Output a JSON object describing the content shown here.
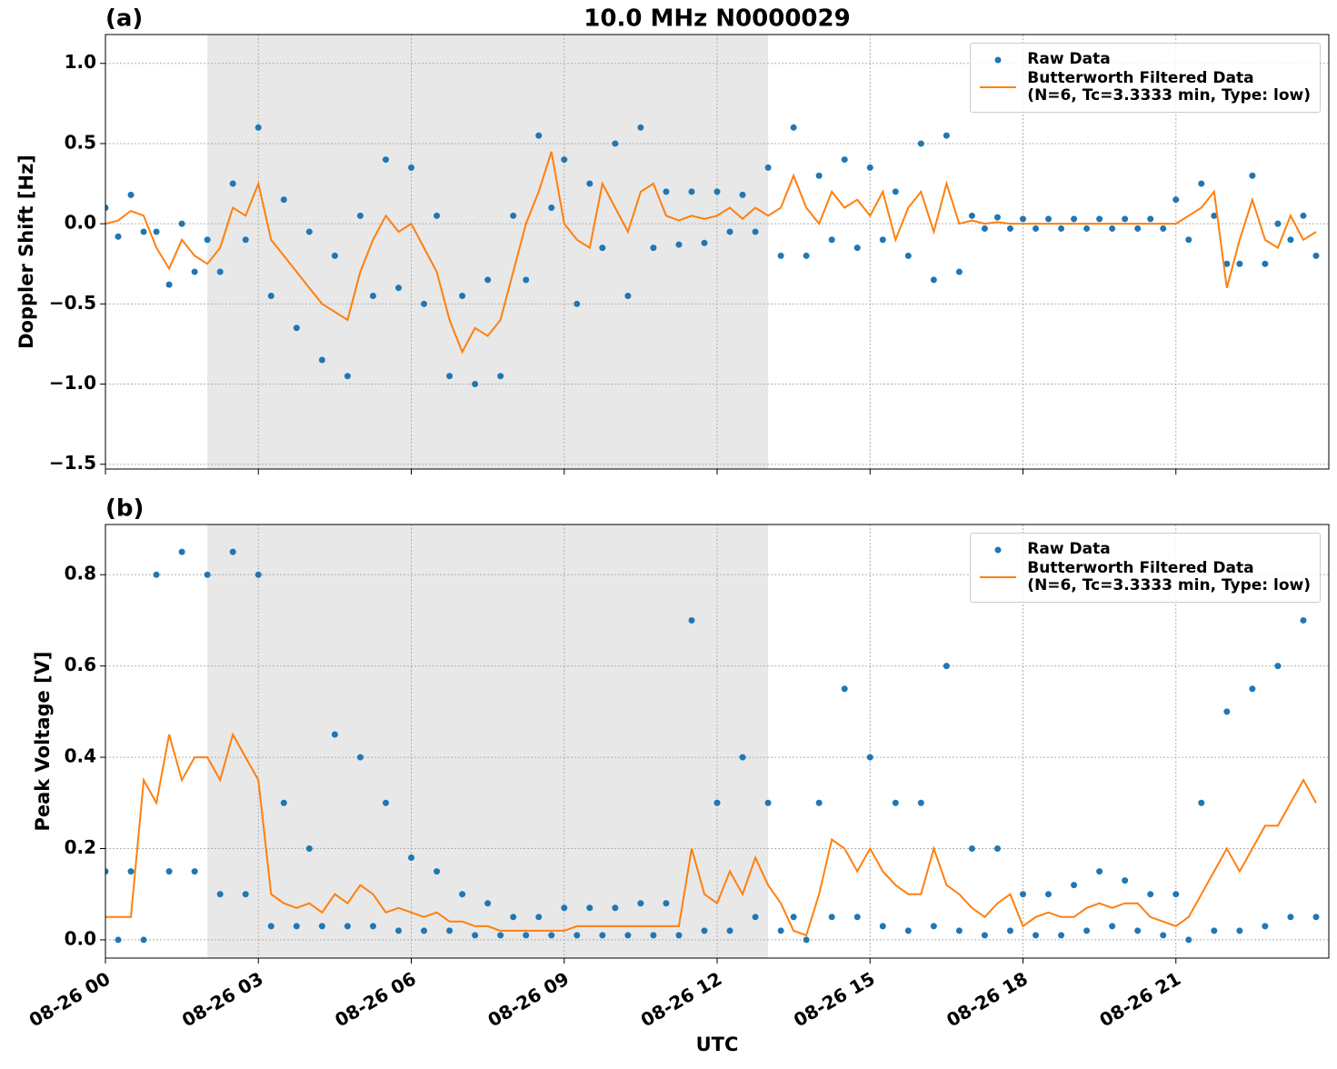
{
  "chart_data": [
    {
      "type": "line",
      "title": "10.0 MHz N0000029",
      "panel_label": "(a)",
      "y_label": "Doppler Shift [Hz]",
      "x": [
        0,
        0.25,
        0.5,
        0.75,
        1,
        1.25,
        1.5,
        1.75,
        2,
        2.25,
        2.5,
        2.75,
        3,
        3.25,
        3.5,
        3.75,
        4,
        4.25,
        4.5,
        4.75,
        5,
        5.25,
        5.5,
        5.75,
        6,
        6.25,
        6.5,
        6.75,
        7,
        7.25,
        7.5,
        7.75,
        8,
        8.25,
        8.5,
        8.75,
        9,
        9.25,
        9.5,
        9.75,
        10,
        10.25,
        10.5,
        10.75,
        11,
        11.25,
        11.5,
        11.75,
        12,
        12.25,
        12.5,
        12.75,
        13,
        13.25,
        13.5,
        13.75,
        14,
        14.25,
        14.5,
        14.75,
        15,
        15.25,
        15.5,
        15.75,
        16,
        16.25,
        16.5,
        16.75,
        17,
        17.25,
        17.5,
        17.75,
        18,
        18.25,
        18.5,
        18.75,
        19,
        19.25,
        19.5,
        19.75,
        20,
        20.25,
        20.5,
        20.75,
        21,
        21.25,
        21.5,
        21.75,
        22,
        22.25,
        22.5,
        22.75,
        23,
        23.25,
        23.5,
        23.75
      ],
      "series": [
        {
          "name": "Raw Data",
          "color": "#1f77b4",
          "style": "points",
          "values": [
            0.1,
            -0.08,
            0.18,
            -0.05,
            -0.05,
            -0.38,
            0.0,
            -0.3,
            -0.1,
            -0.3,
            0.25,
            -0.1,
            0.6,
            -0.45,
            0.15,
            -0.65,
            -0.05,
            -0.85,
            -0.2,
            -0.95,
            0.05,
            -0.45,
            0.4,
            -0.4,
            0.35,
            -0.5,
            0.05,
            -0.95,
            -0.45,
            -1.0,
            -0.35,
            -0.95,
            0.05,
            -0.35,
            0.55,
            0.1,
            0.4,
            -0.5,
            0.25,
            -0.15,
            0.5,
            -0.45,
            0.6,
            -0.15,
            0.2,
            -0.13,
            0.2,
            -0.12,
            0.2,
            -0.05,
            0.18,
            -0.05,
            0.35,
            -0.2,
            0.6,
            -0.2,
            0.3,
            -0.1,
            0.4,
            -0.15,
            0.35,
            -0.1,
            0.2,
            -0.2,
            0.5,
            -0.35,
            0.55,
            -0.3,
            0.05,
            -0.03,
            0.04,
            -0.03,
            0.03,
            -0.03,
            0.03,
            -0.03,
            0.03,
            -0.03,
            0.03,
            -0.03,
            0.03,
            -0.03,
            0.03,
            -0.03,
            0.15,
            -0.1,
            0.25,
            0.05,
            -0.25,
            -0.25,
            0.3,
            -0.25,
            0.0,
            -0.1,
            0.05,
            -0.2
          ]
        },
        {
          "name": "Butterworth Filtered Data\n(N=6, Tc=3.3333 min, Type: low)",
          "color": "#ff7f0e",
          "style": "line",
          "values": [
            0,
            0.02,
            0.08,
            0.05,
            -0.15,
            -0.28,
            -0.1,
            -0.2,
            -0.25,
            -0.15,
            0.1,
            0.05,
            0.25,
            -0.1,
            -0.2,
            -0.3,
            -0.4,
            -0.5,
            -0.55,
            -0.6,
            -0.3,
            -0.1,
            0.05,
            -0.05,
            0.0,
            -0.15,
            -0.3,
            -0.6,
            -0.8,
            -0.65,
            -0.7,
            -0.6,
            -0.3,
            0.0,
            0.2,
            0.45,
            0.0,
            -0.1,
            -0.15,
            0.25,
            0.1,
            -0.05,
            0.2,
            0.25,
            0.05,
            0.02,
            0.05,
            0.03,
            0.05,
            0.1,
            0.03,
            0.1,
            0.05,
            0.1,
            0.3,
            0.1,
            0.0,
            0.2,
            0.1,
            0.15,
            0.05,
            0.2,
            -0.1,
            0.1,
            0.2,
            -0.05,
            0.25,
            0.0,
            0.02,
            0.0,
            0.01,
            0.0,
            0.0,
            0.0,
            0.0,
            0.0,
            0.0,
            0.0,
            0.0,
            0.0,
            0.0,
            0.0,
            0.0,
            0.0,
            0.0,
            0.05,
            0.1,
            0.2,
            -0.4,
            -0.1,
            0.15,
            -0.1,
            -0.15,
            0.05,
            -0.1,
            -0.05
          ]
        }
      ],
      "xlim": [
        0,
        24
      ],
      "xticks": [
        0,
        3,
        6,
        9,
        12,
        15,
        18,
        21
      ],
      "ylim": [
        -1.53,
        1.18
      ],
      "yticks": [
        {
          "value": -1.5,
          "label": "−1.5"
        },
        {
          "value": -1.0,
          "label": "−1.0"
        },
        {
          "value": -0.5,
          "label": "−0.5"
        },
        {
          "value": 0.0,
          "label": "0.0"
        },
        {
          "value": 0.5,
          "label": "0.5"
        },
        {
          "value": 1.0,
          "label": "1.0"
        }
      ],
      "shaded_span": [
        2,
        13
      ],
      "grid": true,
      "legend": "upper right"
    },
    {
      "type": "line",
      "panel_label": "(b)",
      "y_label": "Peak Voltage [V]",
      "x_label": "UTC",
      "x": [
        0,
        0.25,
        0.5,
        0.75,
        1,
        1.25,
        1.5,
        1.75,
        2,
        2.25,
        2.5,
        2.75,
        3,
        3.25,
        3.5,
        3.75,
        4,
        4.25,
        4.5,
        4.75,
        5,
        5.25,
        5.5,
        5.75,
        6,
        6.25,
        6.5,
        6.75,
        7,
        7.25,
        7.5,
        7.75,
        8,
        8.25,
        8.5,
        8.75,
        9,
        9.25,
        9.5,
        9.75,
        10,
        10.25,
        10.5,
        10.75,
        11,
        11.25,
        11.5,
        11.75,
        12,
        12.25,
        12.5,
        12.75,
        13,
        13.25,
        13.5,
        13.75,
        14,
        14.25,
        14.5,
        14.75,
        15,
        15.25,
        15.5,
        15.75,
        16,
        16.25,
        16.5,
        16.75,
        17,
        17.25,
        17.5,
        17.75,
        18,
        18.25,
        18.5,
        18.75,
        19,
        19.25,
        19.5,
        19.75,
        20,
        20.25,
        20.5,
        20.75,
        21,
        21.25,
        21.5,
        21.75,
        22,
        22.25,
        22.5,
        22.75,
        23,
        23.25,
        23.5,
        23.75
      ],
      "series": [
        {
          "name": "Raw Data",
          "color": "#1f77b4",
          "style": "points",
          "values": [
            0.15,
            0.0,
            0.15,
            0.0,
            0.8,
            0.15,
            0.85,
            0.15,
            0.8,
            0.1,
            0.85,
            0.1,
            0.8,
            0.03,
            0.3,
            0.03,
            0.2,
            0.03,
            0.45,
            0.03,
            0.4,
            0.03,
            0.3,
            0.02,
            0.18,
            0.02,
            0.15,
            0.02,
            0.1,
            0.01,
            0.08,
            0.01,
            0.05,
            0.01,
            0.05,
            0.01,
            0.07,
            0.01,
            0.07,
            0.01,
            0.07,
            0.01,
            0.08,
            0.01,
            0.08,
            0.01,
            0.7,
            0.02,
            0.3,
            0.02,
            0.4,
            0.05,
            0.3,
            0.02,
            0.05,
            0.0,
            0.3,
            0.05,
            0.55,
            0.05,
            0.4,
            0.03,
            0.3,
            0.02,
            0.3,
            0.03,
            0.6,
            0.02,
            0.2,
            0.01,
            0.2,
            0.02,
            0.1,
            0.01,
            0.1,
            0.01,
            0.12,
            0.02,
            0.15,
            0.03,
            0.13,
            0.02,
            0.1,
            0.01,
            0.1,
            0.0,
            0.3,
            0.02,
            0.5,
            0.02,
            0.55,
            0.03,
            0.6,
            0.05,
            0.7,
            0.05
          ]
        },
        {
          "name": "Butterworth Filtered Data\n(N=6, Tc=3.3333 min, Type: low)",
          "color": "#ff7f0e",
          "style": "line",
          "values": [
            0.05,
            0.05,
            0.05,
            0.35,
            0.3,
            0.45,
            0.35,
            0.4,
            0.4,
            0.35,
            0.45,
            0.4,
            0.35,
            0.1,
            0.08,
            0.07,
            0.08,
            0.06,
            0.1,
            0.08,
            0.12,
            0.1,
            0.06,
            0.07,
            0.06,
            0.05,
            0.06,
            0.04,
            0.04,
            0.03,
            0.03,
            0.02,
            0.02,
            0.02,
            0.02,
            0.02,
            0.02,
            0.03,
            0.03,
            0.03,
            0.03,
            0.03,
            0.03,
            0.03,
            0.03,
            0.03,
            0.2,
            0.1,
            0.08,
            0.15,
            0.1,
            0.18,
            0.12,
            0.08,
            0.02,
            0.01,
            0.1,
            0.22,
            0.2,
            0.15,
            0.2,
            0.15,
            0.12,
            0.1,
            0.1,
            0.2,
            0.12,
            0.1,
            0.07,
            0.05,
            0.08,
            0.1,
            0.03,
            0.05,
            0.06,
            0.05,
            0.05,
            0.07,
            0.08,
            0.07,
            0.08,
            0.08,
            0.05,
            0.04,
            0.03,
            0.05,
            0.1,
            0.15,
            0.2,
            0.15,
            0.2,
            0.25,
            0.25,
            0.3,
            0.35,
            0.3
          ]
        }
      ],
      "xlim": [
        0,
        24
      ],
      "xticks": [
        {
          "value": 0,
          "label": "08-26 00"
        },
        {
          "value": 3,
          "label": "08-26 03"
        },
        {
          "value": 6,
          "label": "08-26 06"
        },
        {
          "value": 9,
          "label": "08-26 09"
        },
        {
          "value": 12,
          "label": "08-26 12"
        },
        {
          "value": 15,
          "label": "08-26 15"
        },
        {
          "value": 18,
          "label": "08-26 18"
        },
        {
          "value": 21,
          "label": "08-26 21"
        }
      ],
      "ylim": [
        -0.04,
        0.91
      ],
      "yticks": [
        {
          "value": 0.0,
          "label": "0.0"
        },
        {
          "value": 0.2,
          "label": "0.2"
        },
        {
          "value": 0.4,
          "label": "0.4"
        },
        {
          "value": 0.6,
          "label": "0.6"
        },
        {
          "value": 0.8,
          "label": "0.8"
        }
      ],
      "shaded_span": [
        2,
        13
      ],
      "grid": true,
      "legend": "upper right"
    }
  ]
}
